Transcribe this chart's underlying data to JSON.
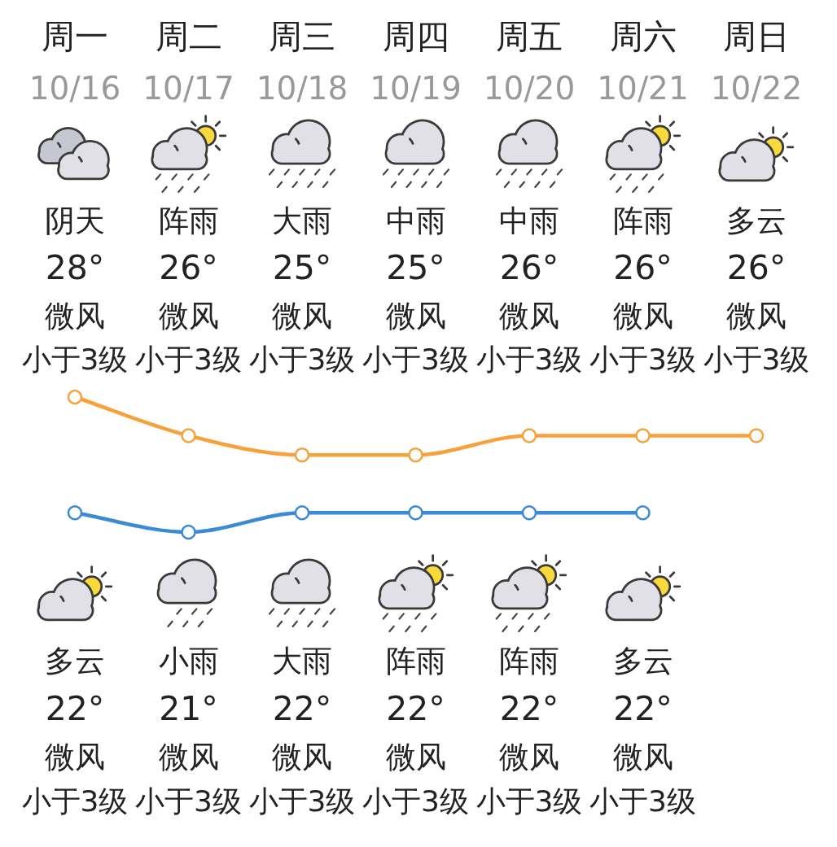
{
  "chart_data": {
    "type": "line",
    "categories": [
      "周一",
      "周二",
      "周三",
      "周四",
      "周五",
      "周六",
      "周日"
    ],
    "series": [
      {
        "color": "#f7a13c",
        "values": [
          28,
          26,
          25,
          25,
          26,
          26,
          26
        ],
        "value_labels": [
          "28°",
          "26°",
          "25°",
          "25°",
          "26°",
          "26°",
          "26°"
        ]
      },
      {
        "color": "#3a8ad6",
        "values": [
          22,
          21,
          22,
          22,
          22,
          22,
          null
        ],
        "value_labels": [
          "22°",
          "21°",
          "22°",
          "22°",
          "22°",
          "22°",
          null
        ]
      }
    ],
    "tick_labels": "x",
    "marker": "circle",
    "line_style": "solid",
    "annotations": [
      "10/16",
      "10/17",
      "10/18",
      "10/19",
      "10/20",
      "10/21",
      "10/22",
      "阴天",
      "阵雨",
      "大雨",
      "中雨",
      "中雨",
      "阵雨",
      "多云",
      "微风",
      "微风",
      "微风",
      "微风",
      "微风",
      "微风",
      "微风",
      "小于3级",
      "小于3级",
      "小于3级",
      "小于3级",
      "小于3级",
      "小于3级",
      "小于3级",
      "多云",
      "小雨",
      "大雨",
      "阵雨",
      "阵雨",
      "多云",
      "微风",
      "微风",
      "微风",
      "微风",
      "微风",
      "微风",
      "小于3级",
      "小于3级",
      "小于3级",
      "小于3级",
      "小于3级",
      "小于3级"
    ]
  }
}
